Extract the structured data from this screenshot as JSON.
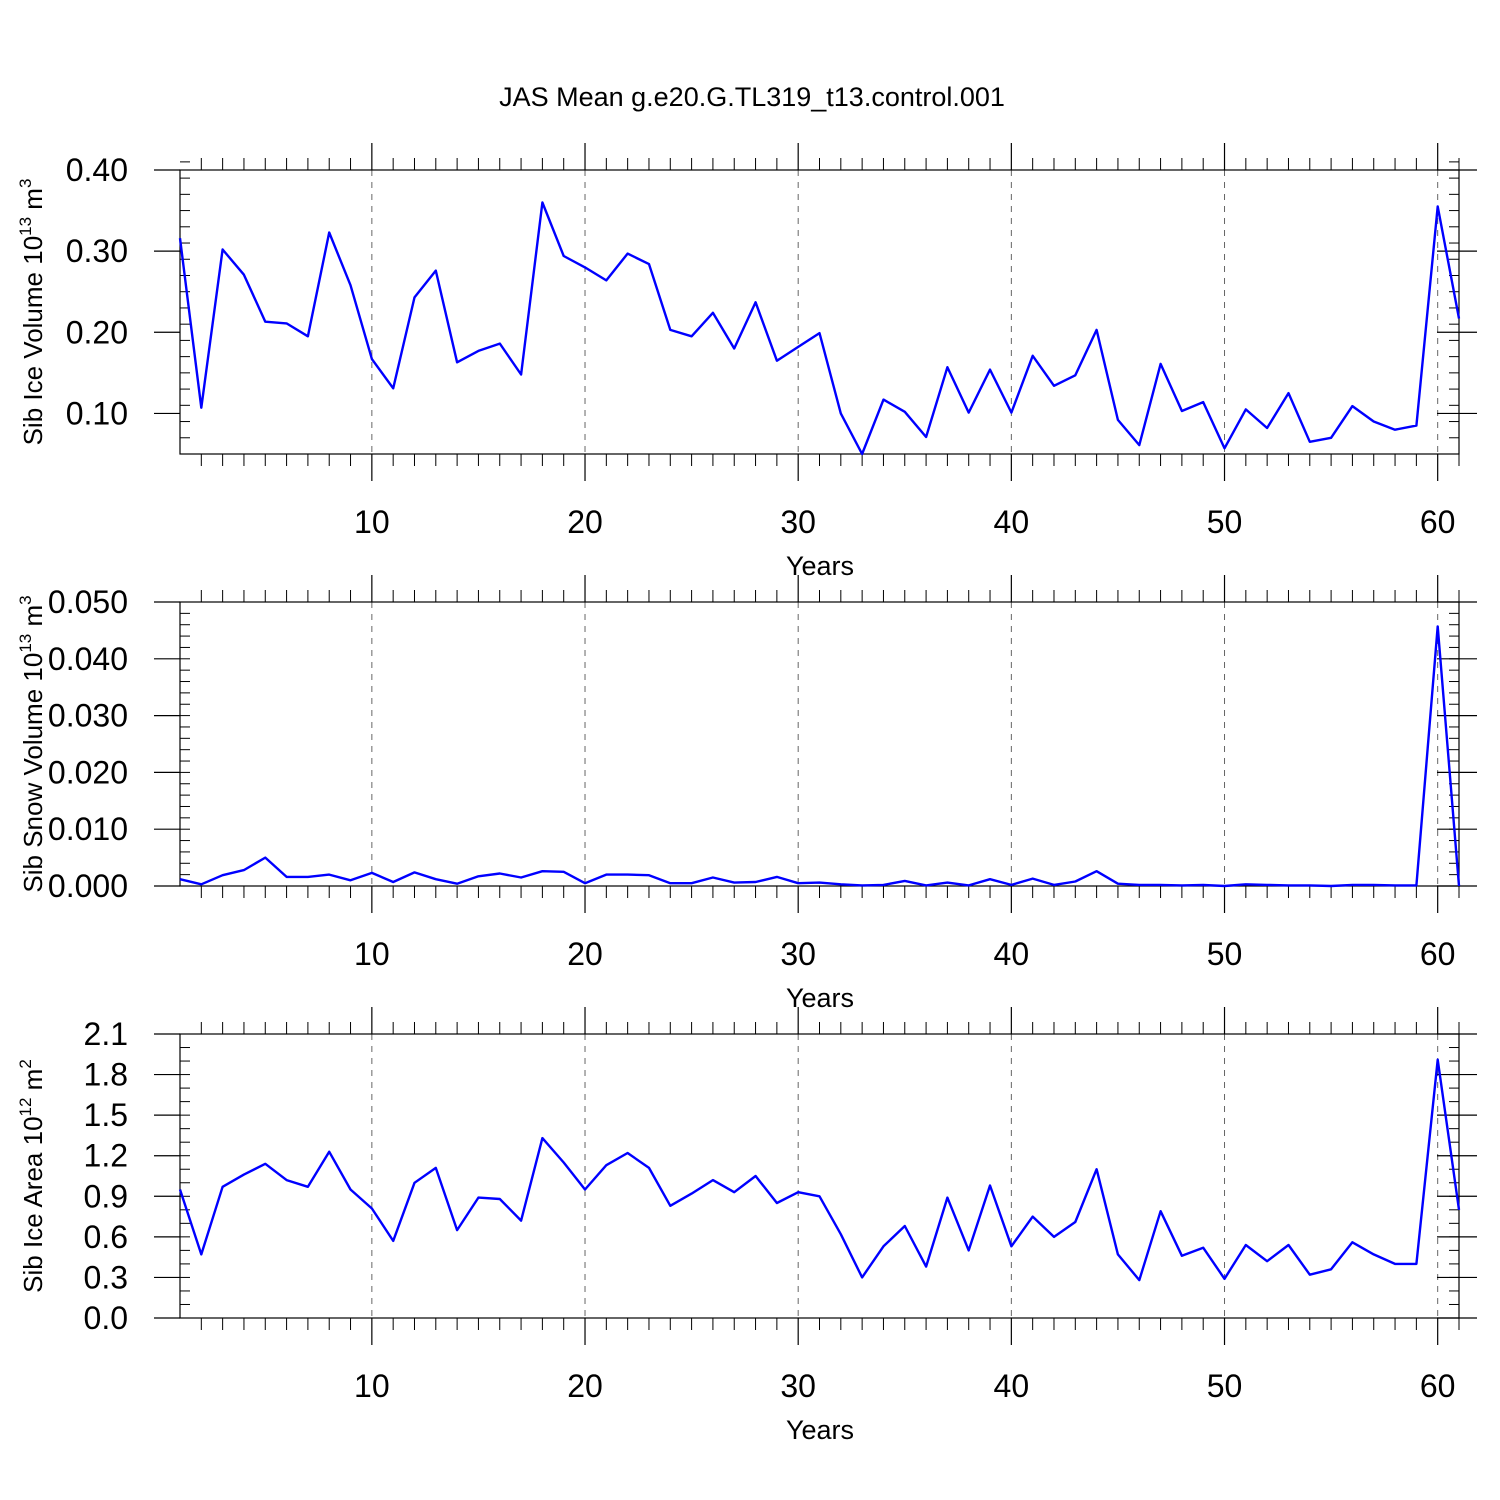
{
  "title": "JAS Mean g.e20.G.TL319_t13.control.001",
  "colors": {
    "line": "#0000ff",
    "axis": "#000000",
    "grid": "#666666"
  },
  "chart_data": [
    {
      "type": "line",
      "id": "ice-volume",
      "ylabel": {
        "main": "Sib Ice Volume 10",
        "sup": "13",
        "unit": " m",
        "unit_sup": "3"
      },
      "xlabel": "Years",
      "xlim": [
        1,
        61
      ],
      "ylim": [
        0.05,
        0.4
      ],
      "xticks": [
        10,
        20,
        30,
        40,
        50,
        60
      ],
      "xtick_labels": [
        "10",
        "20",
        "30",
        "40",
        "50",
        "60"
      ],
      "yticks": [
        0.1,
        0.2,
        0.3,
        0.4
      ],
      "ytick_labels": [
        "0.10",
        "0.20",
        "0.30",
        "0.40"
      ],
      "yminor_step": 0.02,
      "grid_x": [
        10,
        20,
        30,
        40,
        50,
        60
      ],
      "x": [
        1,
        2,
        3,
        4,
        5,
        6,
        7,
        8,
        9,
        10,
        11,
        12,
        13,
        14,
        15,
        16,
        17,
        18,
        19,
        20,
        21,
        22,
        23,
        24,
        25,
        26,
        27,
        28,
        29,
        30,
        31,
        32,
        33,
        34,
        35,
        36,
        37,
        38,
        39,
        40,
        41,
        42,
        43,
        44,
        45,
        46,
        47,
        48,
        49,
        50,
        51,
        52,
        53,
        54,
        55,
        56,
        57,
        58,
        59,
        60,
        61
      ],
      "series": [
        {
          "name": "Sib Ice Volume",
          "values": [
            0.316,
            0.107,
            0.302,
            0.271,
            0.213,
            0.211,
            0.195,
            0.323,
            0.258,
            0.167,
            0.131,
            0.243,
            0.276,
            0.163,
            0.177,
            0.186,
            0.148,
            0.36,
            0.294,
            0.28,
            0.264,
            0.297,
            0.284,
            0.203,
            0.195,
            0.224,
            0.18,
            0.237,
            0.165,
            0.182,
            0.199,
            0.1,
            0.05,
            0.117,
            0.102,
            0.071,
            0.157,
            0.101,
            0.154,
            0.101,
            0.171,
            0.134,
            0.147,
            0.203,
            0.092,
            0.061,
            0.161,
            0.103,
            0.114,
            0.057,
            0.105,
            0.082,
            0.125,
            0.065,
            0.07,
            0.109,
            0.09,
            0.08,
            0.085,
            0.355,
            0.217
          ]
        }
      ]
    },
    {
      "type": "line",
      "id": "snow-volume",
      "ylabel": {
        "main": "Sib Snow Volume 10",
        "sup": "13",
        "unit": " m",
        "unit_sup": "3"
      },
      "xlabel": "Years",
      "xlim": [
        1,
        61
      ],
      "ylim": [
        0.0,
        0.05
      ],
      "xticks": [
        10,
        20,
        30,
        40,
        50,
        60
      ],
      "xtick_labels": [
        "10",
        "20",
        "30",
        "40",
        "50",
        "60"
      ],
      "yticks": [
        0.0,
        0.01,
        0.02,
        0.03,
        0.04,
        0.05
      ],
      "ytick_labels": [
        "0.000",
        "0.010",
        "0.020",
        "0.030",
        "0.040",
        "0.050"
      ],
      "yminor_step": 0.002,
      "grid_x": [
        10,
        20,
        30,
        40,
        50,
        60
      ],
      "x": [
        1,
        2,
        3,
        4,
        5,
        6,
        7,
        8,
        9,
        10,
        11,
        12,
        13,
        14,
        15,
        16,
        17,
        18,
        19,
        20,
        21,
        22,
        23,
        24,
        25,
        26,
        27,
        28,
        29,
        30,
        31,
        32,
        33,
        34,
        35,
        36,
        37,
        38,
        39,
        40,
        41,
        42,
        43,
        44,
        45,
        46,
        47,
        48,
        49,
        50,
        51,
        52,
        53,
        54,
        55,
        56,
        57,
        58,
        59,
        60,
        61
      ],
      "series": [
        {
          "name": "Sib Snow Volume",
          "values": [
            0.0012,
            0.0003,
            0.0019,
            0.0028,
            0.005,
            0.0016,
            0.0016,
            0.002,
            0.001,
            0.0023,
            0.0007,
            0.0024,
            0.0012,
            0.0004,
            0.0017,
            0.0022,
            0.0015,
            0.0026,
            0.0025,
            0.0005,
            0.002,
            0.002,
            0.0019,
            0.0005,
            0.0005,
            0.0015,
            0.0006,
            0.0007,
            0.0016,
            0.0005,
            0.0006,
            0.0003,
            0.0001,
            0.0002,
            0.0009,
            0.0001,
            0.0006,
            0.0001,
            0.0012,
            0.0002,
            0.0013,
            0.0002,
            0.0008,
            0.0026,
            0.0004,
            0.0002,
            0.0002,
            0.0001,
            0.0002,
            0.0,
            0.0003,
            0.0002,
            0.0001,
            0.0001,
            0.0,
            0.0002,
            0.0002,
            0.0001,
            0.0001,
            0.0457,
            0.0
          ]
        }
      ]
    },
    {
      "type": "line",
      "id": "ice-area",
      "ylabel": {
        "main": "Sib Ice Area 10",
        "sup": "12",
        "unit": " m",
        "unit_sup": "2"
      },
      "xlabel": "Years",
      "xlim": [
        1,
        61
      ],
      "ylim": [
        0.0,
        2.1
      ],
      "xticks": [
        10,
        20,
        30,
        40,
        50,
        60
      ],
      "xtick_labels": [
        "10",
        "20",
        "30",
        "40",
        "50",
        "60"
      ],
      "yticks": [
        0.0,
        0.3,
        0.6,
        0.9,
        1.2,
        1.5,
        1.8,
        2.1
      ],
      "ytick_labels": [
        "0.0",
        "0.3",
        "0.6",
        "0.9",
        "1.2",
        "1.5",
        "1.8",
        "2.1"
      ],
      "yminor_step": 0.1,
      "grid_x": [
        10,
        20,
        30,
        40,
        50,
        60
      ],
      "x": [
        1,
        2,
        3,
        4,
        5,
        6,
        7,
        8,
        9,
        10,
        11,
        12,
        13,
        14,
        15,
        16,
        17,
        18,
        19,
        20,
        21,
        22,
        23,
        24,
        25,
        26,
        27,
        28,
        29,
        30,
        31,
        32,
        33,
        34,
        35,
        36,
        37,
        38,
        39,
        40,
        41,
        42,
        43,
        44,
        45,
        46,
        47,
        48,
        49,
        50,
        51,
        52,
        53,
        54,
        55,
        56,
        57,
        58,
        59,
        60,
        61
      ],
      "series": [
        {
          "name": "Sib Ice Area",
          "values": [
            0.95,
            0.47,
            0.97,
            1.06,
            1.14,
            1.02,
            0.97,
            1.23,
            0.95,
            0.81,
            0.57,
            1.0,
            1.11,
            0.65,
            0.89,
            0.88,
            0.72,
            1.33,
            1.15,
            0.95,
            1.13,
            1.22,
            1.11,
            0.83,
            0.92,
            1.02,
            0.93,
            1.05,
            0.85,
            0.93,
            0.9,
            0.62,
            0.3,
            0.53,
            0.68,
            0.38,
            0.89,
            0.5,
            0.98,
            0.53,
            0.75,
            0.6,
            0.71,
            1.1,
            0.47,
            0.28,
            0.79,
            0.46,
            0.52,
            0.29,
            0.54,
            0.42,
            0.54,
            0.32,
            0.36,
            0.56,
            0.47,
            0.4,
            0.4,
            1.91,
            0.8
          ]
        }
      ]
    }
  ]
}
